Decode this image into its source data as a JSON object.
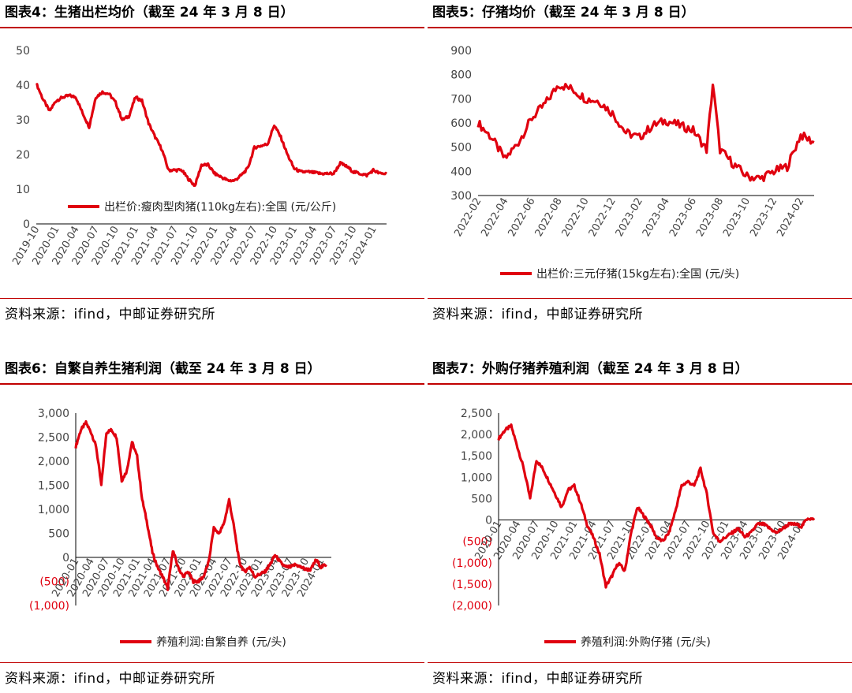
{
  "panels": [
    {
      "id": "p4",
      "title": "图表4：生猪出栏均价（截至 24 年 3 月 8 日）",
      "source": "资料来源：ifind，中邮证券研究所",
      "accent_color": "#e0000f",
      "chart_data": {
        "type": "line",
        "title": "图表4：生猪出栏均价（截至 24 年 3 月 8 日）",
        "ylim": [
          0,
          50
        ],
        "yticks": [
          0,
          10,
          20,
          30,
          40,
          50
        ],
        "ytick_labels": [
          "0",
          "10",
          "20",
          "30",
          "40",
          "50"
        ],
        "xlim": [
          "2019-10",
          "2024-03"
        ],
        "xtick_labels": [
          "2019-10",
          "2020-01",
          "2020-04",
          "2020-07",
          "2020-10",
          "2021-01",
          "2021-04",
          "2021-07",
          "2021-10",
          "2022-01",
          "2022-04",
          "2022-07",
          "2022-10",
          "2023-01",
          "2023-04",
          "2023-07",
          "2023-10",
          "2024-01"
        ],
        "legend": "top-left inside",
        "series": [
          {
            "name": "出栏价:瘦肉型肉猪(110kg左右):全国 (元/公斤)",
            "color": "#e0000f",
            "points": [
              [
                "2019-10",
                40.5
              ],
              [
                "2019-11",
                36.0
              ],
              [
                "2019-12",
                32.5
              ],
              [
                "2020-01",
                35.5
              ],
              [
                "2020-02",
                36.5
              ],
              [
                "2020-03",
                37.0
              ],
              [
                "2020-04",
                36.5
              ],
              [
                "2020-05",
                32.0
              ],
              [
                "2020-06",
                28.0
              ],
              [
                "2020-07",
                36.5
              ],
              [
                "2020-08",
                38.0
              ],
              [
                "2020-09",
                37.5
              ],
              [
                "2020-10",
                35.0
              ],
              [
                "2020-11",
                30.0
              ],
              [
                "2020-12",
                31.0
              ],
              [
                "2021-01",
                36.5
              ],
              [
                "2021-02",
                35.5
              ],
              [
                "2021-03",
                29.0
              ],
              [
                "2021-04",
                25.0
              ],
              [
                "2021-05",
                21.5
              ],
              [
                "2021-06",
                15.5
              ],
              [
                "2021-07",
                15.5
              ],
              [
                "2021-08",
                15.5
              ],
              [
                "2021-09",
                13.0
              ],
              [
                "2021-10",
                11.0
              ],
              [
                "2021-11",
                17.0
              ],
              [
                "2021-12",
                17.0
              ],
              [
                "2022-01",
                14.5
              ],
              [
                "2022-02",
                13.5
              ],
              [
                "2022-03",
                12.5
              ],
              [
                "2022-04",
                12.5
              ],
              [
                "2022-05",
                14.0
              ],
              [
                "2022-06",
                16.0
              ],
              [
                "2022-07",
                22.0
              ],
              [
                "2022-08",
                22.5
              ],
              [
                "2022-09",
                23.0
              ],
              [
                "2022-10",
                28.5
              ],
              [
                "2022-11",
                25.0
              ],
              [
                "2022-12",
                20.0
              ],
              [
                "2023-01",
                16.0
              ],
              [
                "2023-02",
                15.0
              ],
              [
                "2023-03",
                15.0
              ],
              [
                "2023-04",
                14.8
              ],
              [
                "2023-05",
                14.5
              ],
              [
                "2023-06",
                14.5
              ],
              [
                "2023-07",
                14.5
              ],
              [
                "2023-08",
                17.5
              ],
              [
                "2023-09",
                16.5
              ],
              [
                "2023-10",
                15.0
              ],
              [
                "2023-11",
                14.5
              ],
              [
                "2023-12",
                14.0
              ],
              [
                "2024-01",
                15.5
              ],
              [
                "2024-02",
                14.5
              ],
              [
                "2024-03",
                14.5
              ]
            ]
          }
        ]
      }
    },
    {
      "id": "p5",
      "title": "图表5：仔猪均价（截至 24 年 3 月 8 日）",
      "source": "资料来源：ifind，中邮证券研究所",
      "accent_color": "#e0000f",
      "chart_data": {
        "type": "line",
        "title": "图表5：仔猪均价（截至 24 年 3 月 8 日）",
        "ylim": [
          300,
          900
        ],
        "yticks": [
          300,
          400,
          500,
          600,
          700,
          800,
          900
        ],
        "ytick_labels": [
          "300",
          "400",
          "500",
          "600",
          "700",
          "800",
          "900"
        ],
        "xlim": [
          "2022-02",
          "2024-03"
        ],
        "xtick_labels": [
          "2022-02",
          "2022-04",
          "2022-06",
          "2022-08",
          "2022-10",
          "2022-12",
          "2023-02",
          "2023-04",
          "2023-06",
          "2023-08",
          "2023-10",
          "2023-12",
          "2024-02"
        ],
        "legend": "bottom",
        "series": [
          {
            "name": "出栏价:三元仔猪(15kg左右):全国 (元/头)",
            "color": "#e0000f",
            "points": [
              [
                "2022-02",
                600
              ],
              [
                "2022-03",
                540
              ],
              [
                "2022-04",
                450
              ],
              [
                "2022-05",
                520
              ],
              [
                "2022-06",
                620
              ],
              [
                "2022-07",
                680
              ],
              [
                "2022-08",
                760
              ],
              [
                "2022-09",
                740
              ],
              [
                "2022-10",
                700
              ],
              [
                "2022-11",
                690
              ],
              [
                "2022-12",
                640
              ],
              [
                "2023-01",
                560
              ],
              [
                "2023-02",
                540
              ],
              [
                "2023-03",
                590
              ],
              [
                "2023-04",
                610
              ],
              [
                "2023-05",
                590
              ],
              [
                "2023-06",
                570
              ],
              [
                "2023-07",
                490
              ],
              [
                "2023-07-15",
                760
              ],
              [
                "2023-08",
                490
              ],
              [
                "2023-09",
                430
              ],
              [
                "2023-10",
                380
              ],
              [
                "2023-11",
                370
              ],
              [
                "2023-12",
                400
              ],
              [
                "2024-01",
                420
              ],
              [
                "2024-02",
                550
              ],
              [
                "2024-03",
                520
              ]
            ]
          }
        ]
      }
    },
    {
      "id": "p6",
      "title": "图表6：自繁自养生猪利润（截至 24 年 3 月 8 日）",
      "source": "资料来源：ifind，中邮证券研究所",
      "accent_color": "#e0000f",
      "chart_data": {
        "type": "line",
        "title": "图表6：自繁自养生猪利润（截至 24 年 3 月 8 日）",
        "ylim": [
          -1000,
          3000
        ],
        "yticks": [
          -1000,
          -500,
          0,
          500,
          1000,
          1500,
          2000,
          2500,
          3000
        ],
        "ytick_labels": [
          "(1,000)",
          "(500)",
          "0",
          "500",
          "1,000",
          "1,500",
          "2,000",
          "2,500",
          "3,000"
        ],
        "negative_label_color": "#e0000f",
        "xlim": [
          "2020-01",
          "2024-03"
        ],
        "xtick_labels": [
          "2020-01",
          "2020-04",
          "2020-07",
          "2020-10",
          "2021-01",
          "2021-04",
          "2021-07",
          "2021-10",
          "2022-01",
          "2022-04",
          "2022-07",
          "2022-10",
          "2023-01",
          "2023-04",
          "2023-07",
          "2023-10",
          "2024-01"
        ],
        "legend": "bottom",
        "series": [
          {
            "name": "养殖利润:自繁自养 (元/头)",
            "color": "#e0000f",
            "points": [
              [
                "2020-01",
                2300
              ],
              [
                "2020-02",
                2650
              ],
              [
                "2020-03",
                2800
              ],
              [
                "2020-04",
                2600
              ],
              [
                "2020-05",
                2300
              ],
              [
                "2020-06",
                1500
              ],
              [
                "2020-07",
                2600
              ],
              [
                "2020-08",
                2650
              ],
              [
                "2020-09",
                2500
              ],
              [
                "2020-10",
                1600
              ],
              [
                "2020-11",
                1800
              ],
              [
                "2020-12",
                2400
              ],
              [
                "2021-01",
                2100
              ],
              [
                "2021-02",
                1200
              ],
              [
                "2021-03",
                700
              ],
              [
                "2021-04",
                100
              ],
              [
                "2021-05",
                -200
              ],
              [
                "2021-06",
                -400
              ],
              [
                "2021-07",
                -650
              ],
              [
                "2021-08",
                150
              ],
              [
                "2021-09",
                -200
              ],
              [
                "2021-10",
                -400
              ],
              [
                "2021-11",
                -300
              ],
              [
                "2021-12",
                -500
              ],
              [
                "2022-01",
                -500
              ],
              [
                "2022-02",
                -400
              ],
              [
                "2022-03",
                -100
              ],
              [
                "2022-04",
                600
              ],
              [
                "2022-05",
                500
              ],
              [
                "2022-06",
                700
              ],
              [
                "2022-07",
                1200
              ],
              [
                "2022-08",
                600
              ],
              [
                "2022-09",
                -100
              ],
              [
                "2022-10",
                -300
              ],
              [
                "2022-11",
                -200
              ],
              [
                "2022-12",
                -400
              ],
              [
                "2023-01",
                -350
              ],
              [
                "2023-02",
                -300
              ],
              [
                "2023-03",
                -150
              ],
              [
                "2023-04",
                50
              ],
              [
                "2023-05",
                -100
              ],
              [
                "2023-06",
                -200
              ],
              [
                "2023-07",
                -200
              ],
              [
                "2023-08",
                -150
              ],
              [
                "2023-09",
                -200
              ],
              [
                "2023-10",
                -250
              ],
              [
                "2023-11",
                -250
              ],
              [
                "2023-12",
                -50
              ],
              [
                "2024-01",
                -200
              ],
              [
                "2024-02",
                -150
              ]
            ]
          }
        ]
      }
    },
    {
      "id": "p7",
      "title": "图表7：外购仔猪养殖利润（截至 24 年 3 月 8 日）",
      "source": "资料来源：ifind，中邮证券研究所",
      "accent_color": "#e0000f",
      "chart_data": {
        "type": "line",
        "title": "图表7：外购仔猪养殖利润（截至 24 年 3 月 8 日）",
        "ylim": [
          -2000,
          2500
        ],
        "yticks": [
          -2000,
          -1500,
          -1000,
          -500,
          0,
          500,
          1000,
          1500,
          2000,
          2500
        ],
        "ytick_labels": [
          "(2,000)",
          "(1,500)",
          "(1,000)",
          "(500)",
          "0",
          "500",
          "1,000",
          "1,500",
          "2,000",
          "2,500"
        ],
        "negative_label_color": "#e0000f",
        "xlim": [
          "2020-01",
          "2024-03"
        ],
        "xtick_labels": [
          "2020-01",
          "2020-04",
          "2020-07",
          "2020-10",
          "2021-01",
          "2021-04",
          "2021-07",
          "2021-10",
          "2022-01",
          "2022-04",
          "2022-07",
          "2022-10",
          "2023-01",
          "2023-04",
          "2023-07",
          "2023-10",
          "2024-01"
        ],
        "legend": "bottom",
        "series": [
          {
            "name": "养殖利润:外购仔猪 (元/头)",
            "color": "#e0000f",
            "points": [
              [
                "2020-01",
                1900
              ],
              [
                "2020-02",
                2100
              ],
              [
                "2020-03",
                2200
              ],
              [
                "2020-04",
                1700
              ],
              [
                "2020-05",
                1200
              ],
              [
                "2020-06",
                500
              ],
              [
                "2020-07",
                1400
              ],
              [
                "2020-08",
                1200
              ],
              [
                "2020-09",
                900
              ],
              [
                "2020-10",
                600
              ],
              [
                "2020-11",
                300
              ],
              [
                "2020-12",
                700
              ],
              [
                "2021-01",
                800
              ],
              [
                "2021-02",
                400
              ],
              [
                "2021-03",
                -100
              ],
              [
                "2021-04",
                -400
              ],
              [
                "2021-05",
                -800
              ],
              [
                "2021-06",
                -1550
              ],
              [
                "2021-07",
                -1300
              ],
              [
                "2021-08",
                -1000
              ],
              [
                "2021-09",
                -1200
              ],
              [
                "2021-10",
                -300
              ],
              [
                "2021-11",
                300
              ],
              [
                "2021-12",
                100
              ],
              [
                "2022-01",
                -100
              ],
              [
                "2022-02",
                -400
              ],
              [
                "2022-03",
                -500
              ],
              [
                "2022-04",
                -300
              ],
              [
                "2022-05",
                200
              ],
              [
                "2022-06",
                800
              ],
              [
                "2022-07",
                900
              ],
              [
                "2022-08",
                800
              ],
              [
                "2022-09",
                1200
              ],
              [
                "2022-10",
                600
              ],
              [
                "2022-11",
                -300
              ],
              [
                "2022-12",
                -500
              ],
              [
                "2023-01",
                -400
              ],
              [
                "2023-02",
                -300
              ],
              [
                "2023-03",
                -200
              ],
              [
                "2023-04",
                -400
              ],
              [
                "2023-05",
                -300
              ],
              [
                "2023-06",
                -100
              ],
              [
                "2023-07",
                -100
              ],
              [
                "2023-08",
                -200
              ],
              [
                "2023-09",
                -300
              ],
              [
                "2023-10",
                -200
              ],
              [
                "2023-11",
                -100
              ],
              [
                "2023-12",
                -100
              ],
              [
                "2024-01",
                -150
              ],
              [
                "2024-02",
                50
              ],
              [
                "2024-03",
                0
              ]
            ]
          }
        ]
      }
    }
  ]
}
